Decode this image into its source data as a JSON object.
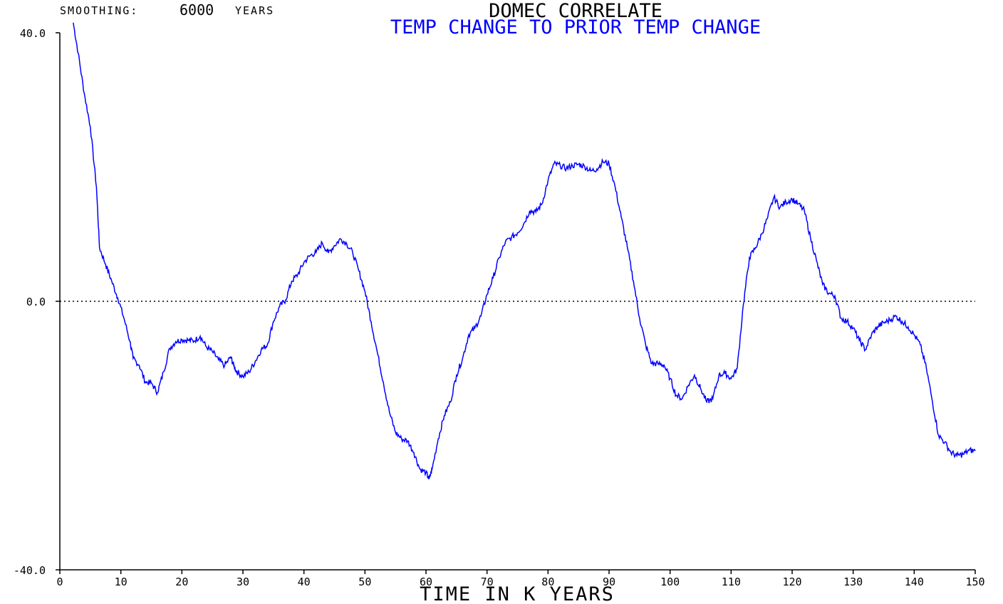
{
  "header": {
    "smoothing_label": "SMOOTHING:",
    "smoothing_value": "6000",
    "smoothing_unit": "YEARS"
  },
  "chart_data": {
    "type": "line",
    "title": "DOMEC CORRELATE",
    "subtitle": "TEMP CHANGE TO PRIOR TEMP CHANGE",
    "xlabel": "TIME IN K YEARS",
    "ylabel": "",
    "xlim": [
      0,
      150
    ],
    "ylim": [
      -40,
      40
    ],
    "x_ticks": [
      0,
      10,
      20,
      30,
      40,
      50,
      60,
      70,
      80,
      90,
      100,
      110,
      120,
      130,
      140,
      150
    ],
    "y_ticks": [
      -40,
      0,
      40
    ],
    "y_tick_labels": [
      "-40.0",
      "0.0",
      "40.0"
    ],
    "x_tick_labels": [
      "0",
      "10",
      "20",
      "30",
      "40",
      "50",
      "60",
      "70",
      "80",
      "90",
      "100",
      "110",
      "120",
      "130",
      "140",
      "150"
    ],
    "reference_line": {
      "y": 0,
      "style": "dotted"
    },
    "series": [
      {
        "color": "#0000ff",
        "points": [
          [
            2.2,
            41.5
          ],
          [
            3,
            37
          ],
          [
            4,
            31
          ],
          [
            5,
            26
          ],
          [
            6,
            17
          ],
          [
            6.5,
            8
          ],
          [
            7.5,
            5.5
          ],
          [
            8.5,
            3
          ],
          [
            9.5,
            0.5
          ],
          [
            10.5,
            -2.5
          ],
          [
            11.5,
            -6
          ],
          [
            12,
            -8.5
          ],
          [
            13,
            -9.5
          ],
          [
            14,
            -12
          ],
          [
            15,
            -12.2
          ],
          [
            16,
            -13.6
          ],
          [
            17,
            -10.5
          ],
          [
            18,
            -7
          ],
          [
            19,
            -6
          ],
          [
            20,
            -5.7
          ],
          [
            21,
            -5.8
          ],
          [
            22,
            -5.9
          ],
          [
            23,
            -5.2
          ],
          [
            24,
            -6.8
          ],
          [
            25,
            -7.5
          ],
          [
            26,
            -8.7
          ],
          [
            27,
            -9.6
          ],
          [
            28,
            -8.3
          ],
          [
            28.5,
            -9.6
          ],
          [
            29,
            -10.5
          ],
          [
            30,
            -11.2
          ],
          [
            31,
            -10.5
          ],
          [
            32,
            -9
          ],
          [
            33,
            -7.2
          ],
          [
            34,
            -6.5
          ],
          [
            35,
            -3
          ],
          [
            36,
            -0.8
          ],
          [
            37,
            0.2
          ],
          [
            38,
            3
          ],
          [
            39,
            4
          ],
          [
            40,
            5.8
          ],
          [
            41,
            6.8
          ],
          [
            42,
            7.3
          ],
          [
            43,
            8.7
          ],
          [
            44,
            7.2
          ],
          [
            45,
            8.3
          ],
          [
            46,
            9.3
          ],
          [
            47,
            8.6
          ],
          [
            48,
            7.2
          ],
          [
            49,
            4.5
          ],
          [
            50,
            1.5
          ],
          [
            51,
            -3
          ],
          [
            52,
            -7.5
          ],
          [
            53,
            -12
          ],
          [
            54,
            -16.5
          ],
          [
            55,
            -19.5
          ],
          [
            56,
            -20.5
          ],
          [
            57,
            -20.8
          ],
          [
            58,
            -22.5
          ],
          [
            59,
            -25
          ],
          [
            60,
            -25.5
          ],
          [
            60.5,
            -26.5
          ],
          [
            61,
            -25
          ],
          [
            62,
            -20.5
          ],
          [
            63,
            -17
          ],
          [
            64,
            -15
          ],
          [
            65,
            -11
          ],
          [
            66,
            -8.5
          ],
          [
            67,
            -5
          ],
          [
            68,
            -4
          ],
          [
            69,
            -2.2
          ],
          [
            70,
            1
          ],
          [
            71,
            3.5
          ],
          [
            72,
            6.5
          ],
          [
            73,
            8.8
          ],
          [
            74,
            9.5
          ],
          [
            75,
            10.2
          ],
          [
            76,
            11.5
          ],
          [
            77,
            13.5
          ],
          [
            78,
            13.3
          ],
          [
            79,
            14.5
          ],
          [
            80,
            18
          ],
          [
            81,
            20.5
          ],
          [
            82,
            20.2
          ],
          [
            83,
            19.8
          ],
          [
            84,
            20.2
          ],
          [
            85,
            20.4
          ],
          [
            86,
            20.1
          ],
          [
            87,
            19.4
          ],
          [
            88,
            19.7
          ],
          [
            89,
            20.8
          ],
          [
            90,
            20.5
          ],
          [
            91,
            17
          ],
          [
            92,
            12.5
          ],
          [
            93,
            8
          ],
          [
            94,
            3
          ],
          [
            95,
            -2.5
          ],
          [
            96,
            -6.5
          ],
          [
            97,
            -9.3
          ],
          [
            98,
            -9.3
          ],
          [
            99,
            -9.5
          ],
          [
            100,
            -11.5
          ],
          [
            101,
            -14
          ],
          [
            102,
            -14.5
          ],
          [
            103,
            -12.5
          ],
          [
            104,
            -11
          ],
          [
            105,
            -13
          ],
          [
            106,
            -15
          ],
          [
            107,
            -14.5
          ],
          [
            108,
            -11
          ],
          [
            109,
            -10.7
          ],
          [
            110,
            -11.5
          ],
          [
            111,
            -10
          ],
          [
            112,
            -0.5
          ],
          [
            113,
            6.5
          ],
          [
            114,
            8
          ],
          [
            115,
            10
          ],
          [
            116,
            12.5
          ],
          [
            117,
            15.5
          ],
          [
            118,
            14
          ],
          [
            119,
            14.8
          ],
          [
            120,
            15.2
          ],
          [
            121,
            14.5
          ],
          [
            122,
            13.5
          ],
          [
            123,
            9.5
          ],
          [
            124,
            6
          ],
          [
            125,
            2.5
          ],
          [
            126,
            1.2
          ],
          [
            127,
            0.8
          ],
          [
            128,
            -2.5
          ],
          [
            129,
            -3
          ],
          [
            130,
            -4
          ],
          [
            131,
            -5.8
          ],
          [
            132,
            -7.2
          ],
          [
            133,
            -5
          ],
          [
            134,
            -3.8
          ],
          [
            135,
            -3.2
          ],
          [
            136,
            -2.8
          ],
          [
            137,
            -2.2
          ],
          [
            138,
            -3
          ],
          [
            139,
            -3.8
          ],
          [
            140,
            -5
          ],
          [
            141,
            -6.5
          ],
          [
            142,
            -10
          ],
          [
            143,
            -15
          ],
          [
            144,
            -20
          ],
          [
            145,
            -21
          ],
          [
            146,
            -22.5
          ],
          [
            147,
            -23
          ],
          [
            148,
            -22.8
          ],
          [
            149,
            -22.2
          ],
          [
            150,
            -22.3
          ]
        ]
      }
    ]
  }
}
